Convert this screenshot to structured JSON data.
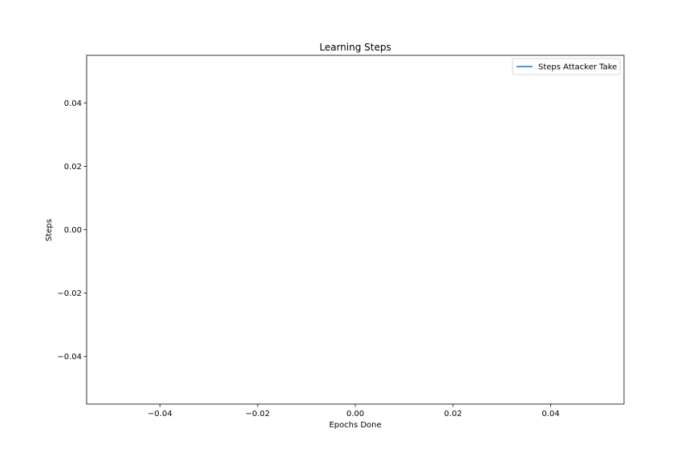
{
  "chart_data": {
    "type": "line",
    "title": "Learning Steps",
    "xlabel": "Epochs Done",
    "ylabel": "Steps",
    "xlim": [
      -0.055,
      0.055
    ],
    "ylim": [
      -0.055,
      0.055
    ],
    "x_ticks": [
      -0.04,
      -0.02,
      0.0,
      0.02,
      0.04
    ],
    "x_tick_labels": [
      "−0.04",
      "−0.02",
      "0.00",
      "0.02",
      "0.04"
    ],
    "y_ticks": [
      -0.04,
      -0.02,
      0.0,
      0.02,
      0.04
    ],
    "y_tick_labels": [
      "−0.04",
      "−0.02",
      "0.00",
      "0.02",
      "0.04"
    ],
    "grid": false,
    "legend_position": "top-right",
    "series": [
      {
        "name": "Steps Attacker Take",
        "color": "#1f77b4",
        "x": [],
        "y": []
      }
    ]
  }
}
